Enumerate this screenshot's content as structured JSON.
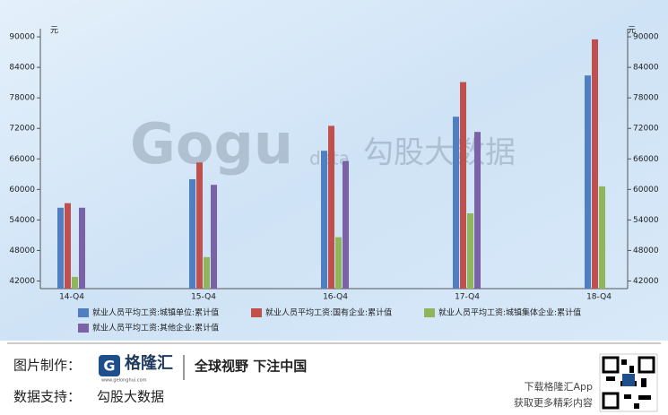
{
  "chart_data": {
    "type": "bar",
    "y_unit": "元",
    "y2_unit": "元",
    "categories": [
      "14-Q4",
      "15-Q4",
      "16-Q4",
      "17-Q4",
      "18-Q4"
    ],
    "series": [
      {
        "name": "就业人员平均工资:城镇单位:累计值",
        "color": "#4f7fc0",
        "values": [
          56400,
          62000,
          67600,
          74300,
          82400
        ]
      },
      {
        "name": "就业人员平均工资:国有企业:累计值",
        "color": "#c0504d",
        "values": [
          57300,
          65300,
          72500,
          81100,
          89500
        ]
      },
      {
        "name": "就业人员平均工资:城镇集体企业:累计值",
        "color": "#8fb65b",
        "values": [
          42800,
          46700,
          50600,
          55300,
          60600
        ]
      },
      {
        "name": "就业人员平均工资:其他企业:累计值",
        "color": "#7b62a6",
        "values": [
          56400,
          60900,
          65600,
          71300,
          null
        ]
      }
    ],
    "ylim": [
      40500,
      91600
    ],
    "yticks": [
      42000,
      48000,
      54000,
      60000,
      66000,
      72000,
      78000,
      84000,
      90000
    ],
    "y2lim": [
      40500,
      91600
    ],
    "y2ticks": [
      42000,
      48000,
      54000,
      60000,
      66000,
      72000,
      78000,
      84000,
      90000
    ]
  },
  "watermark": {
    "brand": "Gogu",
    "sub": "data",
    "name": "勾股大数据"
  },
  "footer": {
    "made_by_label": "图片制作：",
    "logo_name": "格隆汇",
    "logo_url": "www.gelonghui.com",
    "slogan": "全球视野 下注中国",
    "data_label": "数据支持：",
    "data_source": "勾股大数据",
    "app_line1": "下载格隆汇App",
    "app_line2": "获取更多精彩内容"
  }
}
